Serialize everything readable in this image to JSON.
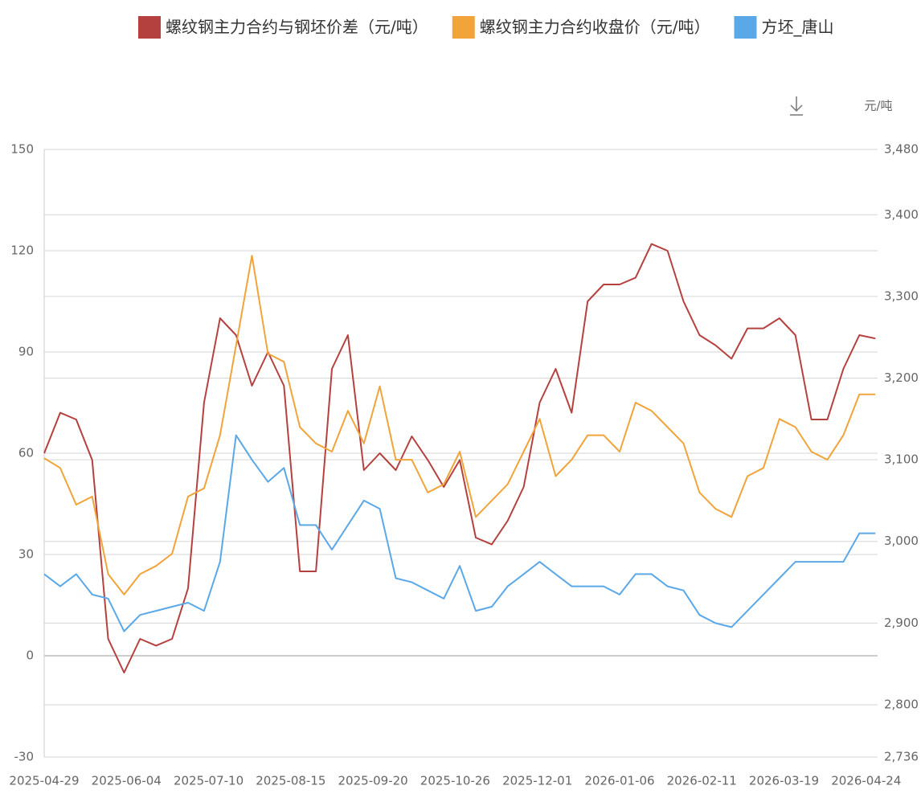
{
  "chart_data": {
    "type": "line",
    "y2_label": "元/吨",
    "x": [
      "2025-04-29",
      "2025-05-06",
      "2025-05-13",
      "2025-05-20",
      "2025-05-27",
      "2025-06-03",
      "2025-06-10",
      "2025-06-17",
      "2025-06-24",
      "2025-07-01",
      "2025-07-08",
      "2025-07-15",
      "2025-07-22",
      "2025-07-29",
      "2025-08-05",
      "2025-08-12",
      "2025-08-19",
      "2025-08-26",
      "2025-09-02",
      "2025-09-09",
      "2025-09-16",
      "2025-09-23",
      "2025-09-30",
      "2025-10-07",
      "2025-10-14",
      "2025-10-21",
      "2025-10-28",
      "2025-11-04",
      "2025-11-11",
      "2025-11-18",
      "2025-11-25",
      "2025-12-02",
      "2025-12-09",
      "2025-12-16",
      "2025-12-23",
      "2025-12-30",
      "2026-01-06",
      "2026-01-13",
      "2026-01-20",
      "2026-01-27",
      "2026-02-03",
      "2026-02-10",
      "2026-02-17",
      "2026-02-24",
      "2026-03-03",
      "2026-03-10",
      "2026-03-17",
      "2026-03-24",
      "2026-03-31",
      "2026-04-07",
      "2026-04-14",
      "2026-04-21",
      "2026-04-28"
    ],
    "xlim": [
      "2025-04-29",
      "2026-04-29"
    ],
    "xticks": [
      "2025-04-29",
      "2025-06-04",
      "2025-07-10",
      "2025-08-15",
      "2025-09-20",
      "2025-10-26",
      "2025-12-01",
      "2026-01-06",
      "2026-02-11",
      "2026-03-19",
      "2026-04-24"
    ],
    "ylim": [
      -30,
      150
    ],
    "yticks": [
      -30,
      0,
      30,
      60,
      90,
      120,
      150
    ],
    "y2lim": [
      2736,
      3480
    ],
    "y2ticks": [
      {
        "value": 2736,
        "label": "2,736"
      },
      {
        "value": 2800,
        "label": "2,800"
      },
      {
        "value": 2900,
        "label": "2,900"
      },
      {
        "value": 3000,
        "label": "3,000"
      },
      {
        "value": 3100,
        "label": "3,100"
      },
      {
        "value": 3200,
        "label": "3,200"
      },
      {
        "value": 3300,
        "label": "3,300"
      },
      {
        "value": 3400,
        "label": "3,400"
      },
      {
        "value": 3480,
        "label": "3,480"
      }
    ],
    "grid": true,
    "series": [
      {
        "name": "螺纹钢主力合约与钢坯价差（元/吨）",
        "color": "#b5413f",
        "axis": "y",
        "values": [
          60,
          72,
          70,
          58,
          5,
          -5,
          5,
          3,
          5,
          20,
          75,
          100,
          95,
          80,
          90,
          80,
          25,
          25,
          85,
          95,
          55,
          60,
          55,
          65,
          58,
          50,
          58,
          35,
          33,
          40,
          50,
          75,
          85,
          72,
          105,
          110,
          110,
          112,
          122,
          120,
          105,
          95,
          92,
          88,
          97,
          97,
          100,
          95,
          70,
          70,
          85,
          95,
          94
        ]
      },
      {
        "name": "螺纹钢主力合约收盘价（元/吨）",
        "color": "#f0a43a",
        "axis": "y2",
        "values": [
          3102,
          3090,
          3045,
          3055,
          2960,
          2935,
          2960,
          2970,
          2985,
          3055,
          3065,
          3130,
          3240,
          3350,
          3230,
          3220,
          3140,
          3120,
          3110,
          3160,
          3120,
          3190,
          3100,
          3100,
          3060,
          3070,
          3110,
          3030,
          3050,
          3070,
          3110,
          3150,
          3080,
          3100,
          3130,
          3130,
          3110,
          3170,
          3160,
          3140,
          3120,
          3060,
          3040,
          3030,
          3080,
          3090,
          3150,
          3140,
          3110,
          3100,
          3130,
          3180,
          3180
        ]
      },
      {
        "name": "方坯_唐山",
        "color": "#5aa8e8",
        "axis": "y2",
        "values": [
          2960,
          2945,
          2960,
          2935,
          2930,
          2890,
          2910,
          2915,
          2920,
          2925,
          2915,
          2975,
          3130,
          3100,
          3073,
          3090,
          3020,
          3020,
          2990,
          3020,
          3050,
          3040,
          2955,
          2950,
          2940,
          2930,
          2970,
          2915,
          2920,
          2945,
          2960,
          2975,
          2960,
          2945,
          2945,
          2945,
          2935,
          2960,
          2960,
          2945,
          2940,
          2910,
          2900,
          2895,
          2915,
          2935,
          2955,
          2975,
          2975,
          2975,
          2975,
          3010,
          3010
        ]
      }
    ]
  }
}
